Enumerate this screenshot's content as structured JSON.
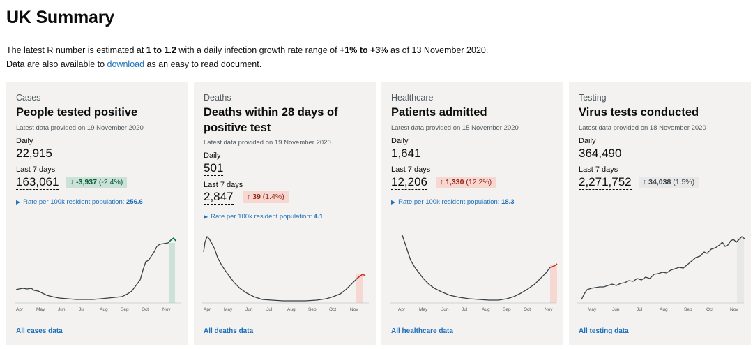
{
  "page": {
    "title": "UK Summary",
    "intro": {
      "p1_a": "The latest R number is estimated at ",
      "p1_b": "1 to 1.2",
      "p1_c": " with a daily infection growth rate range of ",
      "p1_d": "+1% to +3%",
      "p1_e": " as of 13 November 2020.",
      "p2_a": "Data are also available to ",
      "p2_link": "download",
      "p2_b": " as an easy to read document."
    }
  },
  "colors": {
    "link": "#1d70b8",
    "down": "#005a30",
    "up": "#942514",
    "card_bg": "#f3f2f1"
  },
  "cards": [
    {
      "category": "Cases",
      "title": "People tested positive",
      "latest": "Latest data provided on 19 November 2020",
      "daily_label": "Daily",
      "daily_value": "22,915",
      "week_label": "Last 7 days",
      "week_value": "163,061",
      "change_arrow": "↓",
      "change_num": "-3,937",
      "change_pct": "(-2.4%)",
      "rate_label": "Rate per 100k resident population:",
      "rate_value": "256.6",
      "link": "All cases data",
      "months": [
        "Apr",
        "May",
        "Jun",
        "Jul",
        "Aug",
        "Sep",
        "Oct",
        "Nov"
      ]
    },
    {
      "category": "Deaths",
      "title": "Deaths within 28 days of positive test",
      "latest": "Latest data provided on 19 November 2020",
      "daily_label": "Daily",
      "daily_value": "501",
      "week_label": "Last 7 days",
      "week_value": "2,847",
      "change_arrow": "↑",
      "change_num": "39",
      "change_pct": "(1.4%)",
      "rate_label": "Rate per 100k resident population:",
      "rate_value": "4.1",
      "link": "All deaths data",
      "months": [
        "Apr",
        "May",
        "Jun",
        "Jul",
        "Aug",
        "Sep",
        "Oct",
        "Nov"
      ]
    },
    {
      "category": "Healthcare",
      "title": "Patients admitted",
      "latest": "Latest data provided on 15 November 2020",
      "daily_label": "Daily",
      "daily_value": "1,641",
      "week_label": "Last 7 days",
      "week_value": "12,206",
      "change_arrow": "↑",
      "change_num": "1,330",
      "change_pct": "(12.2%)",
      "rate_label": "Rate per 100k resident population:",
      "rate_value": "18.3",
      "link": "All healthcare data",
      "months": [
        "Apr",
        "May",
        "Jun",
        "Jul",
        "Aug",
        "Sep",
        "Oct",
        "Nov"
      ]
    },
    {
      "category": "Testing",
      "title": "Virus tests conducted",
      "latest": "Latest data provided on 18 November 2020",
      "daily_label": "Daily",
      "daily_value": "364,490",
      "week_label": "Last 7 days",
      "week_value": "2,271,752",
      "change_arrow": "↑",
      "change_num": "34,038",
      "change_pct": "(1.5%)",
      "link": "All testing data",
      "months": [
        "May",
        "Jun",
        "Jul",
        "Aug",
        "Sep",
        "Oct",
        "Nov"
      ]
    }
  ]
}
